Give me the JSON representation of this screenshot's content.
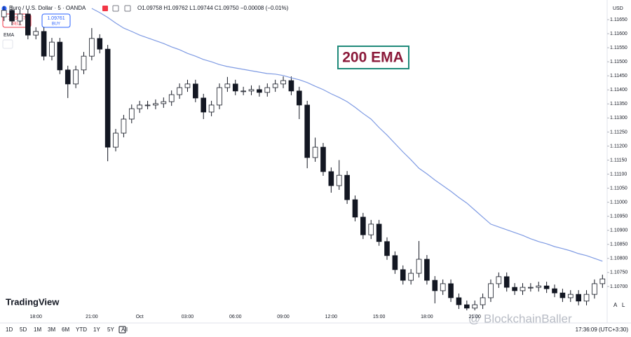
{
  "chart_data": {
    "type": "candlestick",
    "categories": [
      null,
      null,
      null,
      null,
      "18:00",
      null,
      null,
      null,
      null,
      null,
      null,
      "21:00",
      null,
      null,
      null,
      null,
      null,
      "Oct",
      null,
      null,
      null,
      null,
      null,
      "03:00",
      null,
      null,
      null,
      null,
      null,
      "06:00",
      null,
      null,
      null,
      null,
      null,
      "09:00",
      null,
      null,
      null,
      null,
      null,
      "12:00",
      null,
      null,
      null,
      null,
      null,
      "15:00",
      null,
      null,
      null,
      null,
      null,
      "18:00",
      null,
      null,
      null,
      null,
      null,
      "21:00",
      null,
      null,
      null,
      null,
      null,
      null,
      null,
      null,
      null,
      null,
      null,
      null,
      null,
      null,
      null,
      null
    ],
    "open": [
      1.1166,
      1.11683,
      1.11645,
      1.1167,
      1.11595,
      1.11608,
      1.1152,
      1.1157,
      1.11471,
      1.11421,
      1.11471,
      1.1152,
      1.11583,
      1.11545,
      1.11196,
      1.11246,
      1.11296,
      1.11333,
      1.11346,
      1.11346,
      1.11351,
      1.11358,
      1.11383,
      1.11408,
      1.11421,
      1.11371,
      1.11321,
      1.11346,
      1.11408,
      1.11421,
      1.11396,
      1.11396,
      1.11401,
      1.11391,
      1.11408,
      1.11421,
      1.11433,
      1.11396,
      1.11346,
      1.11159,
      1.11196,
      1.11109,
      1.11059,
      1.11096,
      1.11009,
      1.10947,
      1.10884,
      1.10922,
      1.1086,
      1.1081,
      1.1076,
      1.10722,
      1.10747,
      1.10797,
      1.10722,
      1.10685,
      1.1071,
      1.1066,
      1.10635,
      1.10623,
      1.10635,
      1.1066,
      1.1071,
      1.10735,
      1.10697,
      1.10685,
      1.10697,
      1.10697,
      1.10702,
      1.10692,
      1.10677,
      1.1066,
      1.10672,
      1.10648,
      1.10672,
      1.1071
    ],
    "high": [
      1.11698,
      1.11698,
      1.11685,
      1.11685,
      1.11623,
      1.11623,
      1.11585,
      1.11585,
      1.11486,
      1.11486,
      1.11535,
      1.1162,
      1.11598,
      1.1156,
      1.11261,
      1.11311,
      1.11348,
      1.11361,
      1.11361,
      1.11366,
      1.11373,
      1.11398,
      1.11423,
      1.11436,
      1.11436,
      1.11386,
      1.11361,
      1.11423,
      1.11446,
      1.11436,
      1.11411,
      1.11416,
      1.11416,
      1.11423,
      1.11436,
      1.11448,
      1.11448,
      1.11411,
      1.11361,
      1.1123,
      1.11211,
      1.11124,
      1.1115,
      1.11111,
      1.11024,
      1.10962,
      1.10937,
      1.10937,
      1.10875,
      1.10825,
      1.10775,
      1.10762,
      1.10862,
      1.10812,
      1.10737,
      1.10725,
      1.10725,
      1.10675,
      1.1065,
      1.1065,
      1.10675,
      1.10725,
      1.1075,
      1.1075,
      1.10712,
      1.10712,
      1.10712,
      1.10717,
      1.10717,
      1.10707,
      1.10692,
      1.10687,
      1.10687,
      1.10687,
      1.10725,
      1.10742
    ],
    "low": [
      1.11645,
      1.1163,
      1.1163,
      1.1158,
      1.1158,
      1.11505,
      1.11505,
      1.11456,
      1.11371,
      1.11406,
      1.11456,
      1.11505,
      1.1153,
      1.11146,
      1.11181,
      1.11231,
      1.11281,
      1.11318,
      1.11331,
      1.11331,
      1.11336,
      1.11343,
      1.11368,
      1.11393,
      1.11356,
      1.11296,
      1.11306,
      1.11331,
      1.11393,
      1.11381,
      1.11381,
      1.11381,
      1.11376,
      1.11376,
      1.11393,
      1.11406,
      1.11381,
      1.11296,
      1.11121,
      1.11144,
      1.11094,
      1.11034,
      1.11044,
      1.10994,
      1.10932,
      1.10869,
      1.10869,
      1.10845,
      1.10795,
      1.10745,
      1.10707,
      1.10707,
      1.10732,
      1.10707,
      1.1064,
      1.1067,
      1.10645,
      1.1062,
      1.10615,
      1.10615,
      1.1062,
      1.10645,
      1.10695,
      1.10682,
      1.1067,
      1.1067,
      1.10682,
      1.10682,
      1.10677,
      1.10662,
      1.10645,
      1.10645,
      1.10633,
      1.10633,
      1.10657,
      1.10695
    ],
    "close": [
      1.11683,
      1.11645,
      1.1167,
      1.11595,
      1.11608,
      1.1152,
      1.1157,
      1.11471,
      1.11421,
      1.11471,
      1.1152,
      1.11583,
      1.11545,
      1.11196,
      1.11246,
      1.11296,
      1.11333,
      1.11346,
      1.11346,
      1.11351,
      1.11358,
      1.11383,
      1.11408,
      1.11421,
      1.11371,
      1.11321,
      1.11346,
      1.11408,
      1.11421,
      1.11396,
      1.11396,
      1.11401,
      1.11391,
      1.11408,
      1.11421,
      1.11433,
      1.11396,
      1.11346,
      1.11159,
      1.11196,
      1.11109,
      1.11059,
      1.11096,
      1.11009,
      1.10947,
      1.10884,
      1.10922,
      1.1086,
      1.1081,
      1.1076,
      1.10722,
      1.10747,
      1.10797,
      1.10722,
      1.10685,
      1.1071,
      1.1066,
      1.10635,
      1.10623,
      1.10635,
      1.1066,
      1.1071,
      1.10735,
      1.10697,
      1.10685,
      1.10697,
      1.10697,
      1.10702,
      1.10692,
      1.10677,
      1.1066,
      1.10672,
      1.10648,
      1.10672,
      1.1071,
      1.10727
    ],
    "up_color": "#ffffff",
    "down_color": "#131722",
    "series": [
      {
        "name": "EMA",
        "color": "#7f9be3",
        "values": [
          null,
          null,
          null,
          null,
          null,
          null,
          null,
          null,
          null,
          null,
          null,
          1.1169,
          1.11675,
          1.11658,
          1.11638,
          1.1162,
          1.11608,
          1.11595,
          1.11585,
          1.11575,
          1.11565,
          1.11553,
          1.11543,
          1.1153,
          1.1152,
          1.11508,
          1.115,
          1.1149,
          1.11483,
          1.11478,
          1.11473,
          1.11468,
          1.11463,
          1.11458,
          1.11456,
          1.11451,
          1.11443,
          1.11436,
          1.11426,
          1.11413,
          1.11401,
          1.11386,
          1.11373,
          1.11358,
          1.11338,
          1.11316,
          1.11296,
          1.11266,
          1.11239,
          1.11209,
          1.11179,
          1.11151,
          1.11121,
          1.11101,
          1.11079,
          1.11059,
          1.11039,
          1.11017,
          1.10997,
          1.10972,
          1.10947,
          1.10922,
          1.10912,
          1.10902,
          1.10892,
          1.10882,
          1.1087,
          1.1086,
          1.10852,
          1.10842,
          1.10835,
          1.10827,
          1.10817,
          1.1081,
          1.108,
          1.1079
        ]
      }
    ],
    "ylim": [
      1.1061,
      1.117
    ],
    "yticks": [
      {
        "value": 1.1165,
        "label": "1.11650"
      },
      {
        "value": 1.116,
        "label": "1.11600"
      },
      {
        "value": 1.1155,
        "label": "1.11550"
      },
      {
        "value": 1.115,
        "label": "1.11500"
      },
      {
        "value": 1.1145,
        "label": "1.11450"
      },
      {
        "value": 1.114,
        "label": "1.11400"
      },
      {
        "value": 1.1135,
        "label": "1.11350"
      },
      {
        "value": 1.113,
        "label": "1.11300"
      },
      {
        "value": 1.1125,
        "label": "1.11250"
      },
      {
        "value": 1.112,
        "label": "1.11200"
      },
      {
        "value": 1.1115,
        "label": "1.11150"
      },
      {
        "value": 1.111,
        "label": "1.11100"
      },
      {
        "value": 1.1105,
        "label": "1.11050"
      },
      {
        "value": 1.11,
        "label": "1.11000"
      },
      {
        "value": 1.1095,
        "label": "1.10950"
      },
      {
        "value": 1.109,
        "label": "1.10900"
      },
      {
        "value": 1.1085,
        "label": "1.10850"
      },
      {
        "value": 1.108,
        "label": "1.10800"
      },
      {
        "value": 1.1075,
        "label": "1.10750"
      },
      {
        "value": 1.107,
        "label": "1.10700"
      }
    ],
    "grid": false,
    "annotation": "200 EMA",
    "currency": "USD"
  },
  "header": {
    "symbol": "Euro / U.S. Dollar · 5 · OANDA",
    "ohlc": "O1.09758 H1.09762 L1.09744 C1.09750 −0.00008 (−0.01%)",
    "sell_price": "1.09737",
    "sell": "SELL",
    "buy_price": "1.09761",
    "buy": "BUY"
  },
  "brand": "TradingView",
  "watermark": "@ BlockchainBaller",
  "toolbar": {
    "ranges": [
      "1D",
      "5D",
      "1M",
      "3M",
      "6M",
      "YTD",
      "1Y",
      "5Y",
      "All"
    ],
    "clock": "17:36:09 (UTC+3:30)",
    "auto": "A",
    "log": "L"
  }
}
